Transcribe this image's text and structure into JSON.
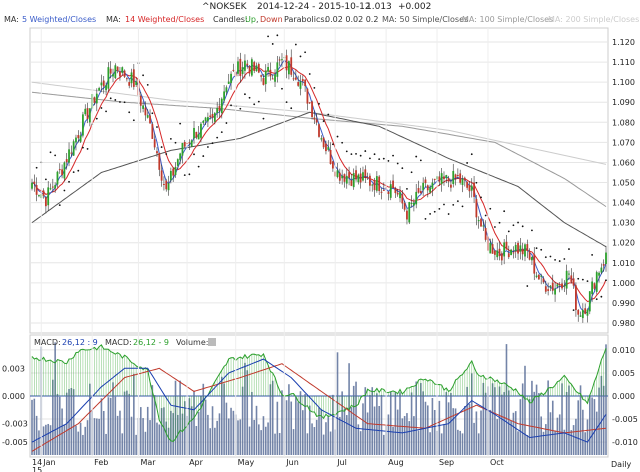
{
  "header": {
    "symbol": "^NOKSEK",
    "range": "2014-12-24 - 2015-10-12",
    "last": "1.013",
    "change": "+0.002"
  },
  "legend": {
    "ma_prefix": "MA:",
    "ma5": "5 Weighted/Closes",
    "ma14": "14 Weighted/Closes",
    "candles_prefix": "Candles:",
    "up": "Up",
    "sep": ",",
    "down": "Down",
    "parabolics": "Parabolics:",
    "parabolic_params": "0.02  0.02  0.2",
    "ma50": "MA:  50 Simple/Closes",
    "ma100": "MA:  100 Simple/Closes",
    "ma200": "MA:  200 Simple/Closes"
  },
  "lower_legend": {
    "macd1": "MACD:",
    "macd1_params": "26,12 : 9",
    "macd2": "MACD:",
    "macd2_params": "26,12 - 9",
    "volume": "Volume:"
  },
  "corner_label": "Daily",
  "colors": {
    "up": "#2ca02c",
    "down": "#c0392b",
    "ma5": "#3a5cc9",
    "ma14": "#d62728",
    "ma50": "#555555",
    "ma100": "#999999",
    "ma200": "#cccccc",
    "sar": "#111111",
    "volume": "#5a6f99",
    "macd_line": "#1a3fb0",
    "signal_line": "#c0392b",
    "histogram": "#2ca02c"
  },
  "chart_data": [
    {
      "type": "candlestick",
      "title": "^NOKSEK",
      "ylim": [
        0.976,
        1.126
      ],
      "y_ticks": [
        "1.120",
        "1.110",
        "1.100",
        "1.090",
        "1.080",
        "1.070",
        "1.060",
        "1.050",
        "1.040",
        "1.030",
        "1.020",
        "1.010",
        "1.000",
        "0.990",
        "0.980"
      ],
      "x_ticks": [
        "Jan",
        "Feb",
        "Mar",
        "Apr",
        "May",
        "Jun",
        "Jul",
        "Aug",
        "Sep",
        "Oct"
      ],
      "x_ticks_year": [
        "14",
        "15"
      ],
      "close_anchors": [
        {
          "i": 0,
          "v": 1.05
        },
        {
          "i": 6,
          "v": 1.042
        },
        {
          "i": 12,
          "v": 1.055
        },
        {
          "i": 20,
          "v": 1.075
        },
        {
          "i": 28,
          "v": 1.095
        },
        {
          "i": 36,
          "v": 1.108
        },
        {
          "i": 44,
          "v": 1.1
        },
        {
          "i": 52,
          "v": 1.075
        },
        {
          "i": 58,
          "v": 1.045
        },
        {
          "i": 64,
          "v": 1.065
        },
        {
          "i": 70,
          "v": 1.075
        },
        {
          "i": 78,
          "v": 1.08
        },
        {
          "i": 84,
          "v": 1.1
        },
        {
          "i": 92,
          "v": 1.11
        },
        {
          "i": 100,
          "v": 1.102
        },
        {
          "i": 108,
          "v": 1.11
        },
        {
          "i": 114,
          "v": 1.105
        },
        {
          "i": 120,
          "v": 1.09
        },
        {
          "i": 126,
          "v": 1.07
        },
        {
          "i": 132,
          "v": 1.055
        },
        {
          "i": 140,
          "v": 1.052
        },
        {
          "i": 148,
          "v": 1.05
        },
        {
          "i": 156,
          "v": 1.048
        },
        {
          "i": 162,
          "v": 1.035
        },
        {
          "i": 168,
          "v": 1.045
        },
        {
          "i": 176,
          "v": 1.05
        },
        {
          "i": 184,
          "v": 1.052
        },
        {
          "i": 190,
          "v": 1.045
        },
        {
          "i": 196,
          "v": 1.02
        },
        {
          "i": 202,
          "v": 1.015
        },
        {
          "i": 208,
          "v": 1.018
        },
        {
          "i": 214,
          "v": 1.015
        },
        {
          "i": 220,
          "v": 1.0
        },
        {
          "i": 226,
          "v": 0.998
        },
        {
          "i": 232,
          "v": 1.005
        },
        {
          "i": 236,
          "v": 0.985
        },
        {
          "i": 240,
          "v": 0.99
        },
        {
          "i": 244,
          "v": 1.005
        },
        {
          "i": 248,
          "v": 1.013
        }
      ],
      "ma50_anchors": [
        {
          "i": 0,
          "v": 1.03
        },
        {
          "i": 30,
          "v": 1.055
        },
        {
          "i": 60,
          "v": 1.066
        },
        {
          "i": 90,
          "v": 1.072
        },
        {
          "i": 120,
          "v": 1.085
        },
        {
          "i": 150,
          "v": 1.078
        },
        {
          "i": 180,
          "v": 1.062
        },
        {
          "i": 210,
          "v": 1.048
        },
        {
          "i": 230,
          "v": 1.03
        },
        {
          "i": 248,
          "v": 1.018
        }
      ],
      "ma100_anchors": [
        {
          "i": 0,
          "v": 1.095
        },
        {
          "i": 40,
          "v": 1.09
        },
        {
          "i": 80,
          "v": 1.087
        },
        {
          "i": 120,
          "v": 1.082
        },
        {
          "i": 160,
          "v": 1.078
        },
        {
          "i": 200,
          "v": 1.07
        },
        {
          "i": 230,
          "v": 1.052
        },
        {
          "i": 248,
          "v": 1.038
        }
      ],
      "ma200_anchors": [
        {
          "i": 0,
          "v": 1.1
        },
        {
          "i": 60,
          "v": 1.091
        },
        {
          "i": 120,
          "v": 1.085
        },
        {
          "i": 180,
          "v": 1.076
        },
        {
          "i": 220,
          "v": 1.066
        },
        {
          "i": 248,
          "v": 1.059
        }
      ]
    },
    {
      "type": "macd",
      "ylim": [
        -0.0128,
        0.0128
      ],
      "y_ticks": [
        "0.010",
        "0.005",
        "0.000",
        "-0.005",
        "-0.010"
      ],
      "y_ticks_left": [
        "0.003",
        "0.000",
        "-0.003",
        "-0.005"
      ],
      "macd_anchors": [
        {
          "i": 0,
          "v": -0.01
        },
        {
          "i": 15,
          "v": -0.006
        },
        {
          "i": 30,
          "v": 0.002
        },
        {
          "i": 40,
          "v": 0.006
        },
        {
          "i": 50,
          "v": 0.006
        },
        {
          "i": 60,
          "v": -0.002
        },
        {
          "i": 70,
          "v": -0.003
        },
        {
          "i": 85,
          "v": 0.005
        },
        {
          "i": 100,
          "v": 0.008
        },
        {
          "i": 112,
          "v": 0.004
        },
        {
          "i": 125,
          "v": -0.003
        },
        {
          "i": 140,
          "v": -0.007
        },
        {
          "i": 160,
          "v": -0.008
        },
        {
          "i": 180,
          "v": -0.006
        },
        {
          "i": 190,
          "v": -0.001
        },
        {
          "i": 200,
          "v": -0.004
        },
        {
          "i": 215,
          "v": -0.009
        },
        {
          "i": 230,
          "v": -0.008
        },
        {
          "i": 240,
          "v": -0.01
        },
        {
          "i": 248,
          "v": -0.004
        }
      ],
      "signal_anchors": [
        {
          "i": 0,
          "v": -0.012
        },
        {
          "i": 20,
          "v": -0.006
        },
        {
          "i": 40,
          "v": 0.004
        },
        {
          "i": 55,
          "v": 0.006
        },
        {
          "i": 70,
          "v": 0.001
        },
        {
          "i": 90,
          "v": 0.004
        },
        {
          "i": 108,
          "v": 0.007
        },
        {
          "i": 125,
          "v": 0.001
        },
        {
          "i": 145,
          "v": -0.006
        },
        {
          "i": 170,
          "v": -0.007
        },
        {
          "i": 192,
          "v": -0.002
        },
        {
          "i": 210,
          "v": -0.006
        },
        {
          "i": 230,
          "v": -0.008
        },
        {
          "i": 248,
          "v": -0.007
        }
      ]
    }
  ]
}
